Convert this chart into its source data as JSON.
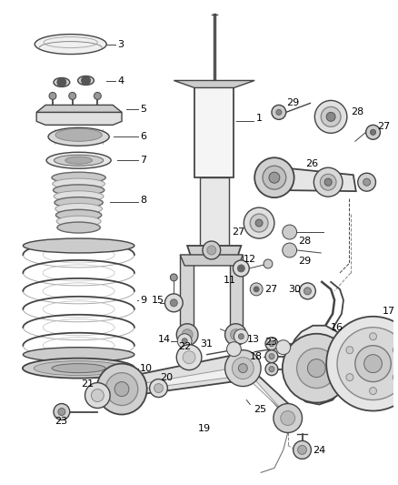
{
  "bg_color": "#ffffff",
  "line_color": "#444444",
  "fig_width": 4.38,
  "fig_height": 5.33,
  "dpi": 100,
  "gray1": "#888888",
  "gray2": "#aaaaaa",
  "gray3": "#cccccc",
  "dark": "#222222",
  "med": "#666666"
}
